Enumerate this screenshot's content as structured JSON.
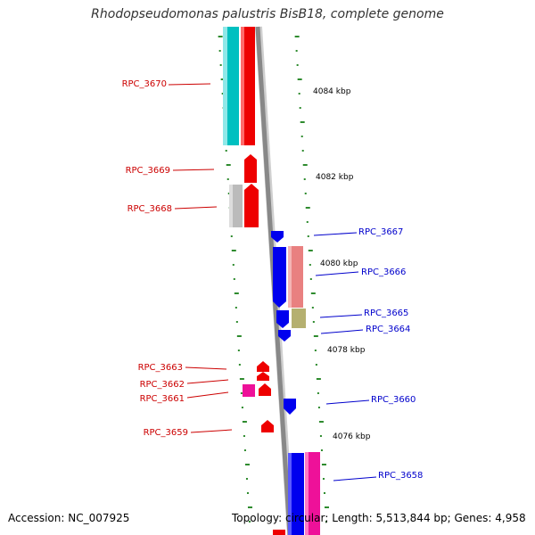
{
  "title": "Rhodopseudomonas palustris BisB18, complete genome",
  "footer": {
    "accession": "Accession: NC_007925",
    "topology": "Topology: circular; Length: 5,513,844 bp; Genes: 4,958"
  },
  "colors": {
    "backbone": "#888888",
    "tick": "#2e8b2e",
    "forward_label": "#cc0000",
    "reverse_label": "#0000cc",
    "cyan": "#00bfbf",
    "red": "#ee0000",
    "gray": "#bbbbbb",
    "blue": "#0000ee",
    "salmon": "#e98080",
    "olive": "#b5b070",
    "magenta": "#ee1199"
  },
  "scale_labels": [
    "4084 kbp",
    "4082 kbp",
    "4080 kbp",
    "4078 kbp",
    "4076 kbp"
  ],
  "gene_labels": {
    "forward": [
      "RPC_3670",
      "RPC_3669",
      "RPC_3668",
      "RPC_3663",
      "RPC_3662",
      "RPC_3661",
      "RPC_3659"
    ],
    "reverse": [
      "RPC_3667",
      "RPC_3666",
      "RPC_3665",
      "RPC_3664",
      "RPC_3660",
      "RPC_3658"
    ]
  }
}
